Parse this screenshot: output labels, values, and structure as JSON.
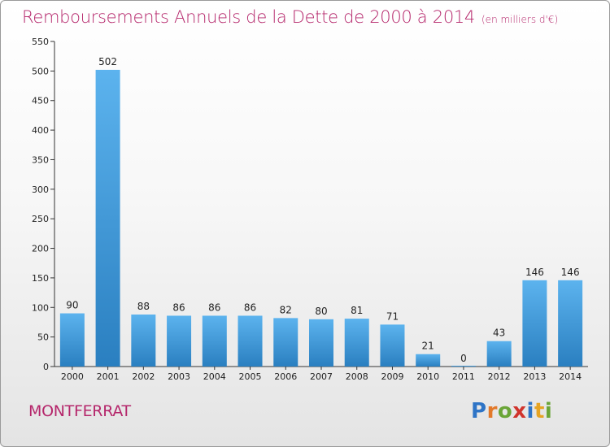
{
  "chart_data": {
    "type": "bar",
    "title": "Remboursements Annuels de la Dette de 2000 à 2014",
    "subtitle": "(en milliers d'€)",
    "xlabel": "",
    "ylabel": "",
    "categories": [
      "2000",
      "2001",
      "2002",
      "2003",
      "2004",
      "2005",
      "2006",
      "2007",
      "2008",
      "2009",
      "2010",
      "2011",
      "2012",
      "2013",
      "2014"
    ],
    "values": [
      90,
      502,
      88,
      86,
      86,
      86,
      82,
      80,
      81,
      71,
      21,
      0,
      43,
      146,
      146
    ],
    "data_labels": [
      "90",
      "502",
      "88",
      "86",
      "86",
      "86",
      "82",
      "80",
      "81",
      "71",
      "21",
      "0",
      "43",
      "146",
      "146"
    ],
    "ylim": [
      0,
      550
    ],
    "yticks": [
      0,
      50,
      100,
      150,
      200,
      250,
      300,
      350,
      400,
      450,
      500,
      550
    ],
    "grid": false,
    "legend": "none",
    "colors": {
      "bar_top": "#5cb3ee",
      "bar_bottom": "#2a7fc0",
      "title": "#b5266b",
      "axis": "#333333"
    }
  },
  "footer": {
    "place": "MONTFERRAT",
    "brand_letters": [
      {
        "char": "P",
        "color": "#2e74c6"
      },
      {
        "char": "r",
        "color": "#e2792a"
      },
      {
        "char": "o",
        "color": "#6aa537"
      },
      {
        "char": "x",
        "color": "#d0342c"
      },
      {
        "char": "i",
        "color": "#2e74c6"
      },
      {
        "char": "t",
        "color": "#e6a424"
      },
      {
        "char": "i",
        "color": "#6aa537"
      }
    ]
  }
}
